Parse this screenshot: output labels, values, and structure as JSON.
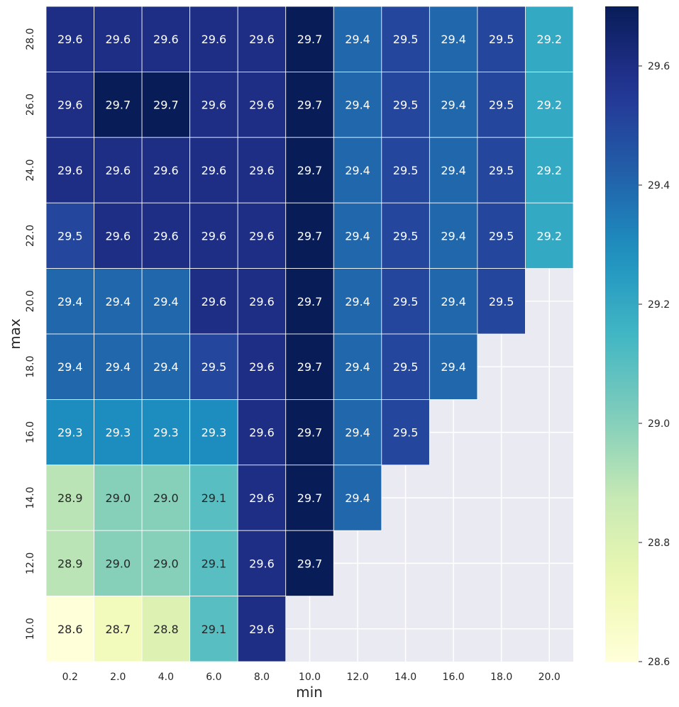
{
  "chart_data": {
    "type": "heatmap",
    "title": "",
    "xlabel": "min",
    "ylabel": "max",
    "x_categories": [
      "0.2",
      "2.0",
      "4.0",
      "6.0",
      "8.0",
      "10.0",
      "12.0",
      "14.0",
      "16.0",
      "18.0",
      "20.0"
    ],
    "y_categories": [
      "28.0",
      "26.0",
      "24.0",
      "22.0",
      "20.0",
      "18.0",
      "16.0",
      "14.0",
      "12.0",
      "10.0"
    ],
    "values": [
      [
        29.6,
        29.6,
        29.6,
        29.6,
        29.6,
        29.7,
        29.4,
        29.5,
        29.4,
        29.5,
        29.2
      ],
      [
        29.6,
        29.7,
        29.7,
        29.6,
        29.6,
        29.7,
        29.4,
        29.5,
        29.4,
        29.5,
        29.2
      ],
      [
        29.6,
        29.6,
        29.6,
        29.6,
        29.6,
        29.7,
        29.4,
        29.5,
        29.4,
        29.5,
        29.2
      ],
      [
        29.5,
        29.6,
        29.6,
        29.6,
        29.6,
        29.7,
        29.4,
        29.5,
        29.4,
        29.5,
        29.2
      ],
      [
        29.4,
        29.4,
        29.4,
        29.6,
        29.6,
        29.7,
        29.4,
        29.5,
        29.4,
        29.5,
        null
      ],
      [
        29.4,
        29.4,
        29.4,
        29.5,
        29.6,
        29.7,
        29.4,
        29.5,
        29.4,
        null,
        null
      ],
      [
        29.3,
        29.3,
        29.3,
        29.3,
        29.6,
        29.7,
        29.4,
        29.5,
        null,
        null,
        null
      ],
      [
        28.9,
        29.0,
        29.0,
        29.1,
        29.6,
        29.7,
        29.4,
        null,
        null,
        null,
        null
      ],
      [
        28.9,
        29.0,
        29.0,
        29.1,
        29.6,
        29.7,
        null,
        null,
        null,
        null,
        null
      ],
      [
        28.6,
        28.7,
        28.8,
        29.1,
        29.6,
        null,
        null,
        null,
        null,
        null,
        null
      ]
    ],
    "colorbar": {
      "min": 28.6,
      "max": 29.7,
      "ticks": [
        "28.6",
        "28.8",
        "29.0",
        "29.2",
        "29.4",
        "29.6"
      ],
      "colormap": "YlGnBu"
    },
    "missing_color": "#eaeaf2",
    "grid": true
  }
}
